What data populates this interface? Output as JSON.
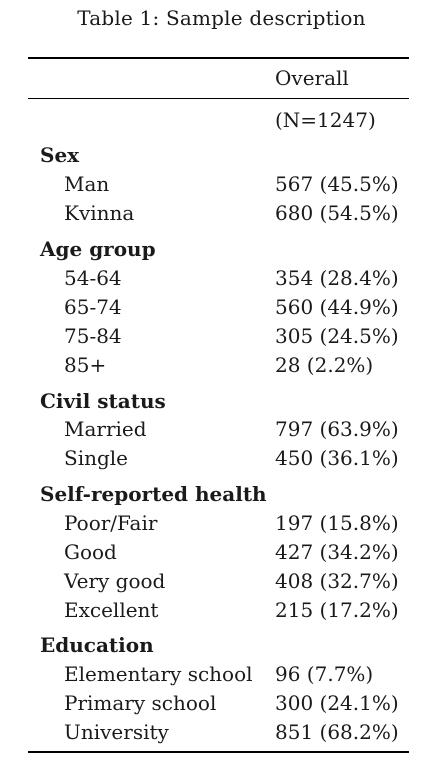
{
  "caption": "Table 1: Sample description",
  "header": {
    "column": "Overall",
    "n_label": "(N=1247)"
  },
  "groups": [
    {
      "label": "Sex",
      "rows": [
        {
          "label": "Man",
          "value": "567 (45.5%)"
        },
        {
          "label": "Kvinna",
          "value": "680 (54.5%)"
        }
      ]
    },
    {
      "label": "Age group",
      "rows": [
        {
          "label": "54-64",
          "value": "354 (28.4%)"
        },
        {
          "label": "65-74",
          "value": "560 (44.9%)"
        },
        {
          "label": "75-84",
          "value": "305 (24.5%)"
        },
        {
          "label": "85+",
          "value": "28 (2.2%)"
        }
      ]
    },
    {
      "label": "Civil status",
      "rows": [
        {
          "label": "Married",
          "value": "797 (63.9%)"
        },
        {
          "label": "Single",
          "value": "450 (36.1%)"
        }
      ]
    },
    {
      "label": "Self-reported health",
      "rows": [
        {
          "label": "Poor/Fair",
          "value": "197 (15.8%)"
        },
        {
          "label": "Good",
          "value": "427 (34.2%)"
        },
        {
          "label": "Very good",
          "value": "408 (32.7%)"
        },
        {
          "label": "Excellent",
          "value": "215 (17.2%)"
        }
      ]
    },
    {
      "label": "Education",
      "rows": [
        {
          "label": "Elementary school",
          "value": "96 (7.7%)"
        },
        {
          "label": "Primary school",
          "value": "300 (24.1%)"
        },
        {
          "label": "University",
          "value": "851 (68.2%)"
        }
      ]
    }
  ]
}
